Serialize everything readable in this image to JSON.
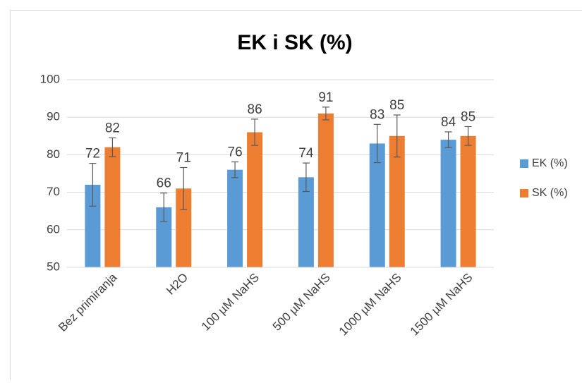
{
  "chart_data": {
    "type": "bar",
    "title": "EK i SK (%)",
    "categories": [
      "Bez primiranja",
      "H2O",
      "100 µM NaHS",
      "500 µM NaHS",
      "1000 µM NaHS",
      "1500 µM NaHS"
    ],
    "series": [
      {
        "name": "EK (%)",
        "color": "#5b9bd5",
        "values": [
          72,
          66,
          76,
          74,
          83,
          84
        ],
        "errors": [
          5.7,
          3.8,
          2.1,
          3.8,
          5.1,
          2.1
        ]
      },
      {
        "name": "SK (%)",
        "color": "#ed7d31",
        "values": [
          82,
          71,
          86,
          91,
          85,
          85
        ],
        "errors": [
          2.5,
          5.6,
          3.5,
          1.7,
          5.6,
          2.5
        ]
      }
    ],
    "ylim": [
      50,
      100
    ],
    "yticks": [
      50,
      60,
      70,
      80,
      90,
      100
    ],
    "grid": true,
    "legend": "right"
  }
}
